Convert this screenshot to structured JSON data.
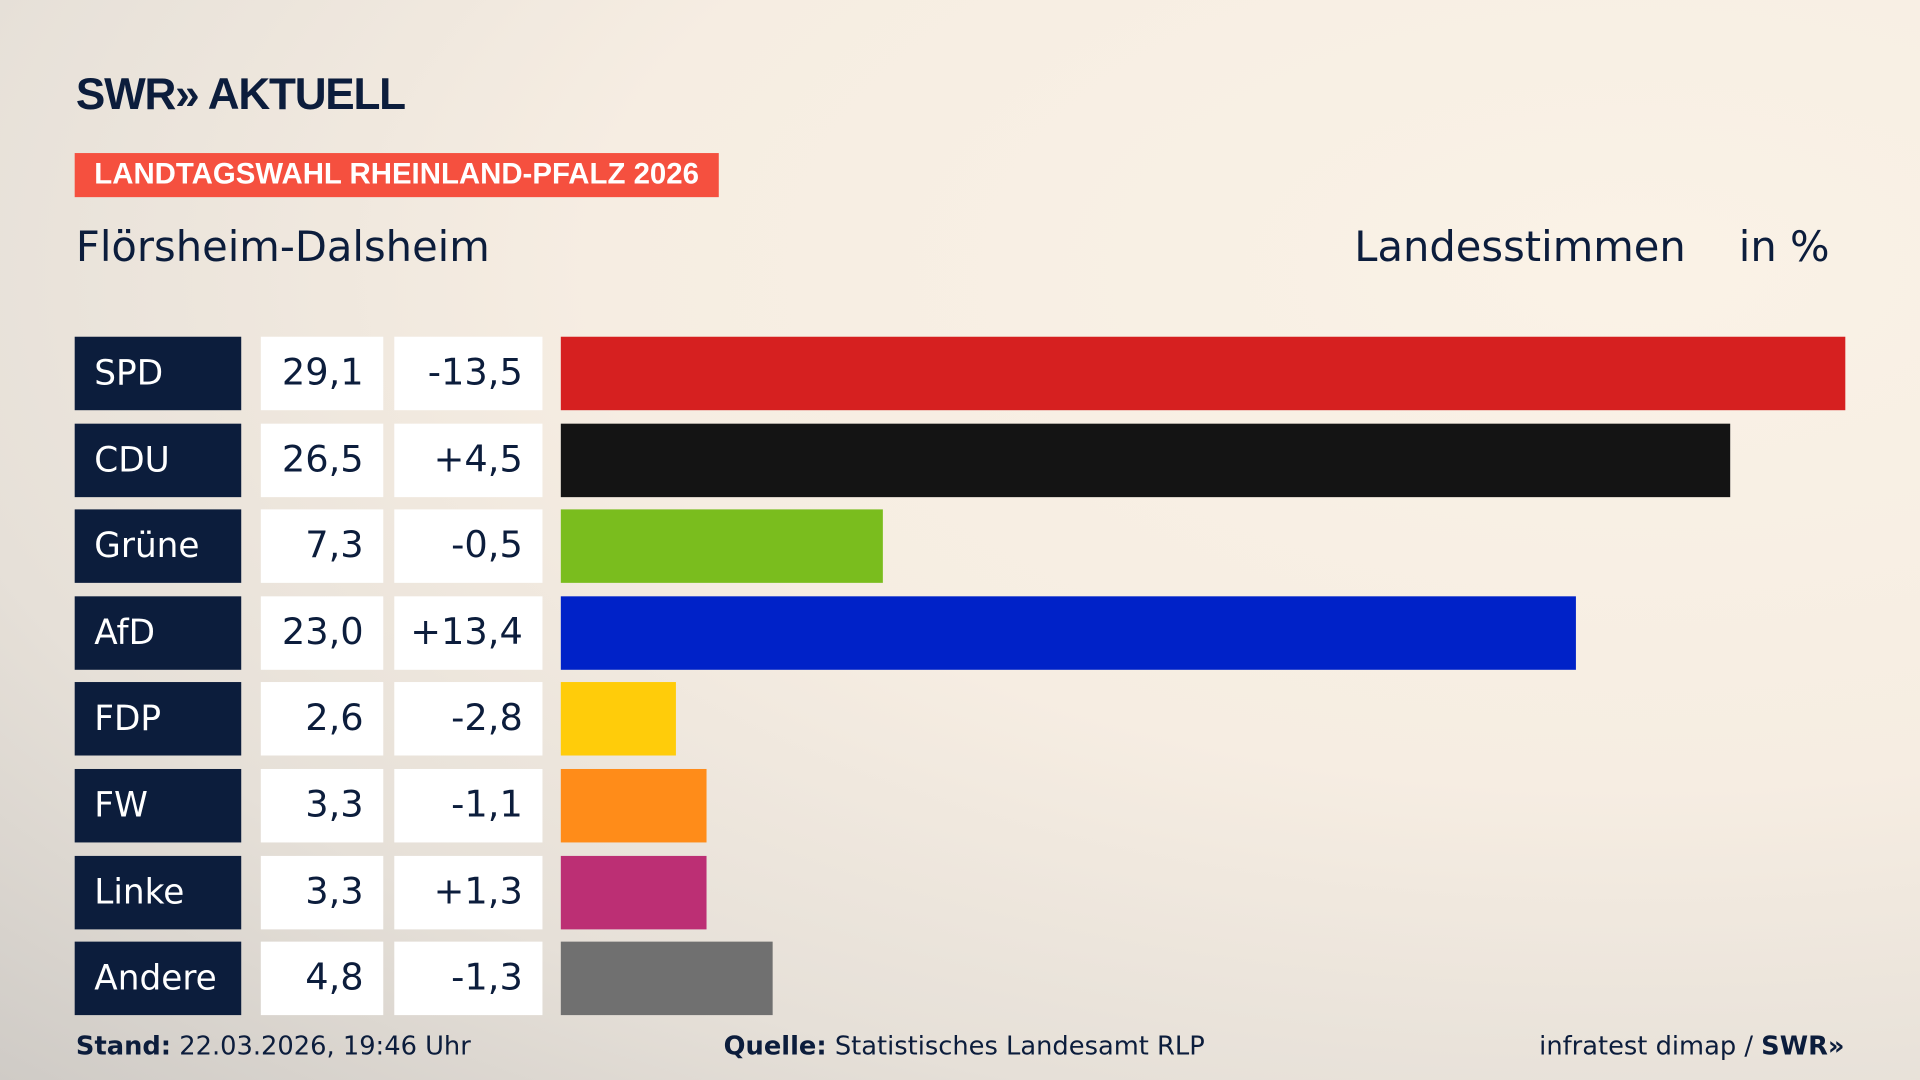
{
  "header": {
    "logo": "SWR» AKTUELL",
    "banner": "LANDTAGSWAHL RHEINLAND-PFALZ 2026",
    "place": "Flörsheim-Dalsheim",
    "measure": "Landesstimmen",
    "unit": "in %"
  },
  "chart_data": {
    "type": "bar",
    "orientation": "horizontal",
    "categories": [
      "SPD",
      "CDU",
      "Grüne",
      "AfD",
      "FDP",
      "FW",
      "Linke",
      "Andere"
    ],
    "values": [
      "29,1",
      "26,5",
      "7,3",
      "23,0",
      "2,6",
      "3,3",
      "3,3",
      "4,8"
    ],
    "numeric_values": [
      29.1,
      26.5,
      7.3,
      23.0,
      2.6,
      3.3,
      3.3,
      4.8
    ],
    "changes": [
      "-13,5",
      "+4,5",
      "-0,5",
      "+13,4",
      "-2,8",
      "-1,1",
      "+1,3",
      "-1,3"
    ],
    "colors": [
      "#d62020",
      "#141414",
      "#7abd1e",
      "#0022c8",
      "#ffcc0a",
      "#ff8c19",
      "#bc2f74",
      "#707070"
    ],
    "ylabel": "Landesstimmen",
    "unit": "in %"
  },
  "footer": {
    "stand_label": "Stand:",
    "stand_value": " 22.03.2026, 19:46 Uhr",
    "source_label": "Quelle:",
    "source_value": " Statistisches Landesamt RLP",
    "credit": "infratest dimap / ",
    "credit_logo": "SWR»"
  }
}
